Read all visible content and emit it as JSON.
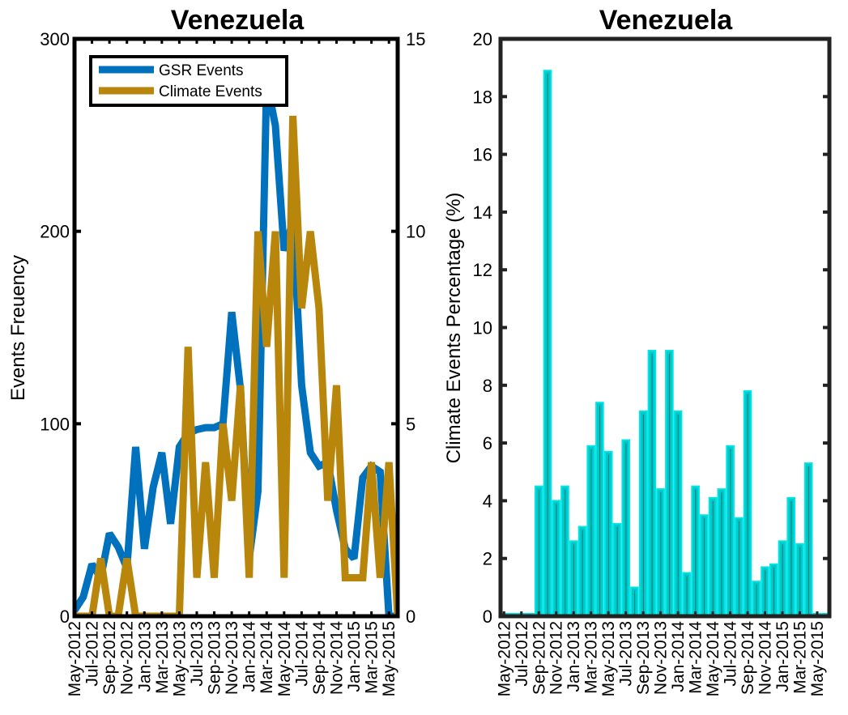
{
  "chart_data": [
    {
      "type": "line",
      "title": "Venezuela",
      "xlabel": "",
      "ylabel": "Events Freuency",
      "y2label": "",
      "ylim": [
        0,
        300
      ],
      "y2lim": [
        0,
        15
      ],
      "yticks": [
        0,
        100,
        200,
        300
      ],
      "y2ticks": [
        0,
        5,
        10,
        15
      ],
      "x": [
        "May-2012",
        "Jun-2012",
        "Jul-2012",
        "Aug-2012",
        "Sep-2012",
        "Oct-2012",
        "Nov-2012",
        "Dec-2012",
        "Jan-2013",
        "Feb-2013",
        "Mar-2013",
        "Apr-2013",
        "May-2013",
        "Jun-2013",
        "Jul-2013",
        "Aug-2013",
        "Sep-2013",
        "Oct-2013",
        "Nov-2013",
        "Dec-2013",
        "Jan-2014",
        "Feb-2014",
        "Mar-2014",
        "Apr-2014",
        "May-2014",
        "Jun-2014",
        "Jul-2014",
        "Aug-2014",
        "Sep-2014",
        "Oct-2014",
        "Nov-2014",
        "Dec-2014",
        "Jan-2015",
        "Feb-2015",
        "Mar-2015",
        "Apr-2015",
        "May-2015",
        "Jun-2015"
      ],
      "xtick_labels": [
        "May-2012",
        "Jul-2012",
        "Sep-2012",
        "Nov-2012",
        "Jan-2013",
        "Mar-2013",
        "May-2013",
        "Jul-2013",
        "Sep-2013",
        "Nov-2013",
        "Jan-2014",
        "Mar-2014",
        "May-2014",
        "Jul-2014",
        "Sep-2014",
        "Nov-2014",
        "Jan-2015",
        "Mar-2015",
        "May-2015"
      ],
      "series": [
        {
          "name": "GSR Events",
          "axis": "left",
          "color": "#0072bd",
          "values": [
            3,
            10,
            27,
            20,
            43,
            36,
            25,
            88,
            35,
            67,
            85,
            48,
            88,
            95,
            97,
            98,
            98,
            100,
            158,
            118,
            30,
            65,
            278,
            255,
            190,
            205,
            120,
            85,
            78,
            80,
            55,
            35,
            30,
            72,
            78,
            75,
            0,
            0
          ]
        },
        {
          "name": "Climate Events",
          "axis": "right",
          "color": "#b8860b",
          "values": [
            0,
            0,
            0,
            1.5,
            0,
            0,
            1.5,
            0,
            0,
            0,
            0,
            0,
            0,
            7,
            1,
            4,
            1,
            5,
            3,
            6,
            1,
            10,
            7,
            10,
            1,
            13,
            8,
            10,
            8,
            3,
            6,
            1,
            1,
            1,
            4,
            1,
            4,
            0
          ]
        }
      ],
      "legend": "top-left",
      "grid": false
    },
    {
      "type": "bar",
      "title": "Venezuela",
      "xlabel": "",
      "ylabel": "Climate Events Percentage (%)",
      "ylim": [
        0,
        20
      ],
      "yticks": [
        0,
        2,
        4,
        6,
        8,
        10,
        12,
        14,
        16,
        18,
        20
      ],
      "categories": [
        "May-2012",
        "Jun-2012",
        "Jul-2012",
        "Aug-2012",
        "Sep-2012",
        "Oct-2012",
        "Nov-2012",
        "Dec-2012",
        "Jan-2013",
        "Feb-2013",
        "Mar-2013",
        "Apr-2013",
        "May-2013",
        "Jun-2013",
        "Jul-2013",
        "Aug-2013",
        "Sep-2013",
        "Oct-2013",
        "Nov-2013",
        "Dec-2013",
        "Jan-2014",
        "Feb-2014",
        "Mar-2014",
        "Apr-2014",
        "May-2014",
        "Jun-2014",
        "Jul-2014",
        "Aug-2014",
        "Sep-2014",
        "Oct-2014",
        "Nov-2014",
        "Dec-2014",
        "Jan-2015",
        "Feb-2015",
        "Mar-2015",
        "Apr-2015",
        "May-2015",
        "Jun-2015"
      ],
      "xtick_labels": [
        "May-2012",
        "Jul-2012",
        "Sep-2012",
        "Nov-2012",
        "Jan-2013",
        "Mar-2013",
        "May-2013",
        "Jul-2013",
        "Sep-2013",
        "Nov-2013",
        "Jan-2014",
        "Mar-2014",
        "May-2014",
        "Jul-2014",
        "Sep-2014",
        "Nov-2014",
        "Jan-2015",
        "Mar-2015",
        "May-2015"
      ],
      "values": [
        0,
        0,
        0,
        0,
        4.5,
        18.9,
        4.0,
        4.5,
        2.6,
        3.1,
        5.9,
        7.4,
        5.7,
        3.2,
        6.1,
        1.0,
        7.1,
        9.2,
        4.4,
        9.2,
        7.1,
        1.5,
        4.5,
        3.5,
        4.1,
        4.4,
        5.9,
        3.4,
        7.8,
        1.2,
        1.7,
        1.8,
        2.6,
        4.1,
        2.5,
        5.3,
        0,
        0
      ],
      "bar_color": "#00c8c8",
      "bar_edge_color": "#00e5e5",
      "grid": false
    }
  ]
}
